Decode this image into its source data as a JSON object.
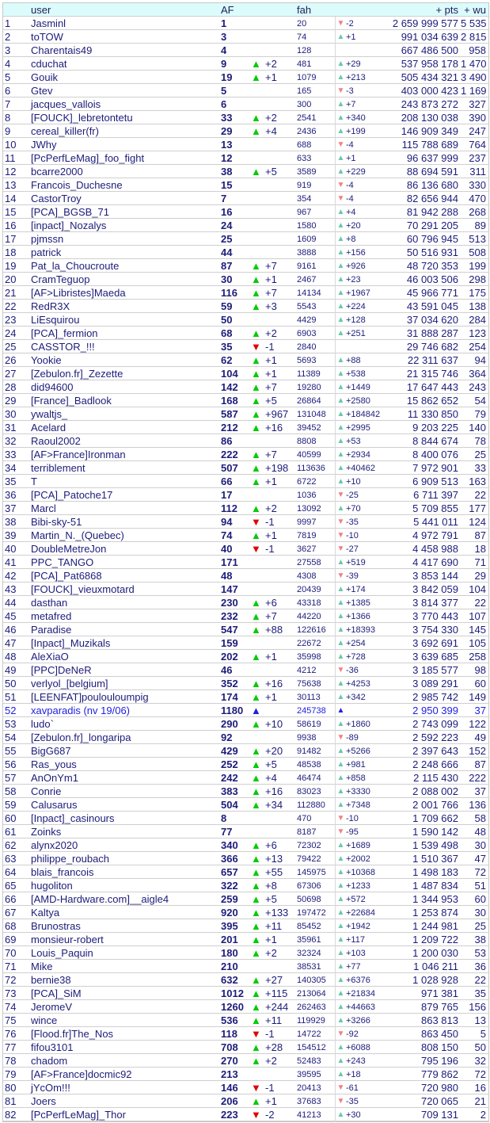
{
  "header": {
    "rank": "",
    "user": "user",
    "af": "AF",
    "fah": "fah",
    "pts": "+ pts",
    "wu": "+ wu"
  },
  "colors": {
    "header_bg": "#dcfcfc",
    "text": "#1c1c7a",
    "af_up": "#00cc00",
    "af_down": "#e00000",
    "fah_up": "#66c8a8",
    "fah_down": "#f08080",
    "new_entry": "#2020e0"
  },
  "icons": {
    "up": "triangle-up-icon",
    "down": "triangle-down-icon",
    "new": "triangle-up-blue-icon"
  },
  "rows": [
    [
      "1",
      "Jasminl",
      "1",
      "",
      "",
      "20",
      "down",
      "-2",
      "2 659 999 577",
      "5 535"
    ],
    [
      "2",
      "toTOW",
      "3",
      "",
      "",
      "74",
      "up",
      "+1",
      "991 034 639",
      "2 815"
    ],
    [
      "3",
      "Charentais49",
      "4",
      "",
      "",
      "128",
      "",
      "",
      "667 486 500",
      "958"
    ],
    [
      "4",
      "cduchat",
      "9",
      "up",
      "+2",
      "481",
      "up",
      "+29",
      "537 958 178",
      "1 470"
    ],
    [
      "5",
      "Gouik",
      "19",
      "up",
      "+1",
      "1079",
      "up",
      "+213",
      "505 434 321",
      "3 490"
    ],
    [
      "6",
      "Gtev",
      "5",
      "",
      "",
      "165",
      "down",
      "-3",
      "403 000 423",
      "1 169"
    ],
    [
      "7",
      "jacques_vallois",
      "6",
      "",
      "",
      "300",
      "up",
      "+7",
      "243 873 272",
      "327"
    ],
    [
      "8",
      "[FOUCK]_lebretontetu",
      "33",
      "up",
      "+2",
      "2541",
      "up",
      "+340",
      "208 130 038",
      "390"
    ],
    [
      "9",
      "cereal_killer(fr)",
      "29",
      "up",
      "+4",
      "2436",
      "up",
      "+199",
      "146 909 349",
      "247"
    ],
    [
      "10",
      "JWhy",
      "13",
      "",
      "",
      "688",
      "down",
      "-4",
      "115 788 689",
      "764"
    ],
    [
      "11",
      "[PcPerfLeMag]_foo_fight",
      "12",
      "",
      "",
      "633",
      "up",
      "+1",
      "96 637 999",
      "237"
    ],
    [
      "12",
      "bcarre2000",
      "38",
      "up",
      "+5",
      "3589",
      "up",
      "+229",
      "88 694 591",
      "311"
    ],
    [
      "13",
      "Francois_Duchesne",
      "15",
      "",
      "",
      "919",
      "down",
      "-4",
      "86 136 680",
      "330"
    ],
    [
      "14",
      "CastorTroy",
      "7",
      "",
      "",
      "354",
      "down",
      "-4",
      "82 656 944",
      "470"
    ],
    [
      "15",
      "[PCA]_BGSB_71",
      "16",
      "",
      "",
      "967",
      "up",
      "+4",
      "81 942 288",
      "268"
    ],
    [
      "16",
      "[inpact]_Nozalys",
      "24",
      "",
      "",
      "1580",
      "up",
      "+20",
      "70 291 205",
      "89"
    ],
    [
      "17",
      "pjmssn",
      "25",
      "",
      "",
      "1609",
      "up",
      "+8",
      "60 796 945",
      "513"
    ],
    [
      "18",
      "patrick",
      "44",
      "",
      "",
      "3888",
      "up",
      "+156",
      "50 516 931",
      "508"
    ],
    [
      "19",
      "Pat_la_Choucroute",
      "87",
      "up",
      "+7",
      "9161",
      "up",
      "+926",
      "48 720 353",
      "199"
    ],
    [
      "20",
      "CramTeguop",
      "30",
      "up",
      "+1",
      "2467",
      "up",
      "+23",
      "46 003 506",
      "298"
    ],
    [
      "21",
      "[AF>Libristes]Maeda",
      "116",
      "up",
      "+7",
      "14134",
      "up",
      "+1967",
      "45 966 771",
      "175"
    ],
    [
      "22",
      "RedR3X",
      "59",
      "up",
      "+3",
      "5543",
      "up",
      "+224",
      "43 591 045",
      "138"
    ],
    [
      "23",
      "LiEsquirou",
      "50",
      "",
      "",
      "4429",
      "up",
      "+128",
      "37 034 620",
      "284"
    ],
    [
      "24",
      "[PCA]_fermion",
      "68",
      "up",
      "+2",
      "6903",
      "up",
      "+251",
      "31 888 287",
      "123"
    ],
    [
      "25",
      "CASSTOR_!!!",
      "35",
      "down",
      "-1",
      "2840",
      "",
      "",
      "29 746 682",
      "254"
    ],
    [
      "26",
      "Yookie",
      "62",
      "up",
      "+1",
      "5693",
      "up",
      "+88",
      "22 311 637",
      "94"
    ],
    [
      "27",
      "[Zebulon.fr]_Zezette",
      "104",
      "up",
      "+1",
      "11389",
      "up",
      "+538",
      "21 315 746",
      "364"
    ],
    [
      "28",
      "did94600",
      "142",
      "up",
      "+7",
      "19280",
      "up",
      "+1449",
      "17 647 443",
      "243"
    ],
    [
      "29",
      "[France]_Badlook",
      "168",
      "up",
      "+5",
      "26864",
      "up",
      "+2580",
      "15 862 652",
      "54"
    ],
    [
      "30",
      "ywaltjs_",
      "587",
      "up",
      "+967",
      "131048",
      "up",
      "+184842",
      "11 330 850",
      "79"
    ],
    [
      "31",
      "Acelard",
      "212",
      "up",
      "+16",
      "39452",
      "up",
      "+2995",
      "9 203 225",
      "140"
    ],
    [
      "32",
      "Raoul2002",
      "86",
      "",
      "",
      "8808",
      "up",
      "+53",
      "8 844 674",
      "78"
    ],
    [
      "33",
      "[AF>France]Ironman",
      "222",
      "up",
      "+7",
      "40599",
      "up",
      "+2934",
      "8 400 076",
      "25"
    ],
    [
      "34",
      "terriblement",
      "507",
      "up",
      "+198",
      "113636",
      "up",
      "+40462",
      "7 972 901",
      "33"
    ],
    [
      "35",
      "T",
      "66",
      "up",
      "+1",
      "6722",
      "up",
      "+10",
      "6 909 513",
      "163"
    ],
    [
      "36",
      "[PCA]_Patoche17",
      "17",
      "",
      "",
      "1036",
      "down",
      "-25",
      "6 711 397",
      "22"
    ],
    [
      "37",
      "Marcl",
      "112",
      "up",
      "+2",
      "13092",
      "up",
      "+70",
      "5 709 855",
      "177"
    ],
    [
      "38",
      "Bibi-sky-51",
      "94",
      "down",
      "-1",
      "9997",
      "down",
      "-35",
      "5 441 011",
      "124"
    ],
    [
      "39",
      "Martin_N._(Quebec)",
      "74",
      "up",
      "+1",
      "7819",
      "down",
      "-10",
      "4 972 791",
      "87"
    ],
    [
      "40",
      "DoubleMetreJon",
      "40",
      "down",
      "-1",
      "3627",
      "down",
      "-27",
      "4 458 988",
      "18"
    ],
    [
      "41",
      "PPC_TANGO",
      "171",
      "",
      "",
      "27558",
      "up",
      "+519",
      "4 417 690",
      "71"
    ],
    [
      "42",
      "[PCA]_Pat6868",
      "48",
      "",
      "",
      "4308",
      "down",
      "-39",
      "3 853 144",
      "29"
    ],
    [
      "43",
      "[FOUCK]_vieuxmotard",
      "147",
      "",
      "",
      "20439",
      "up",
      "+174",
      "3 842 059",
      "104"
    ],
    [
      "44",
      "dasthan",
      "230",
      "up",
      "+6",
      "43318",
      "up",
      "+1385",
      "3 814 377",
      "22"
    ],
    [
      "45",
      "metafred",
      "232",
      "up",
      "+7",
      "44220",
      "up",
      "+1366",
      "3 770 443",
      "107"
    ],
    [
      "46",
      "Paradise",
      "547",
      "up",
      "+88",
      "122616",
      "up",
      "+18393",
      "3 754 330",
      "145"
    ],
    [
      "47",
      "[Inpact]_Muzikals",
      "159",
      "",
      "",
      "22672",
      "up",
      "+254",
      "3 692 691",
      "105"
    ],
    [
      "48",
      "AleXiaO",
      "202",
      "up",
      "+1",
      "35998",
      "up",
      "+728",
      "3 639 685",
      "258"
    ],
    [
      "49",
      "[PPC]DeNeR",
      "46",
      "",
      "",
      "4212",
      "down",
      "-36",
      "3 185 577",
      "98"
    ],
    [
      "50",
      "verlyol_[belgium]",
      "352",
      "up",
      "+16",
      "75638",
      "up",
      "+4253",
      "3 089 291",
      "60"
    ],
    [
      "51",
      "[LEENFAT]poulouloumpig",
      "174",
      "up",
      "+1",
      "30113",
      "up",
      "+342",
      "2 985 742",
      "149"
    ],
    [
      "52",
      "xavparadis  (nv 19/06)",
      "1180",
      "new",
      "",
      "245738",
      "new",
      "",
      "2 950 399",
      "37"
    ],
    [
      "53",
      "ludo`",
      "290",
      "up",
      "+10",
      "58619",
      "up",
      "+1860",
      "2 743 099",
      "122"
    ],
    [
      "54",
      "[Zebulon.fr]_longaripa",
      "92",
      "",
      "",
      "9938",
      "down",
      "-89",
      "2 592 223",
      "49"
    ],
    [
      "55",
      "BigG687",
      "429",
      "up",
      "+20",
      "91482",
      "up",
      "+5266",
      "2 397 643",
      "152"
    ],
    [
      "56",
      "Ras_yous",
      "252",
      "up",
      "+5",
      "48538",
      "up",
      "+981",
      "2 248 666",
      "87"
    ],
    [
      "57",
      "AnOnYm1",
      "242",
      "up",
      "+4",
      "46474",
      "up",
      "+858",
      "2 115 430",
      "222"
    ],
    [
      "58",
      "Conrie",
      "383",
      "up",
      "+16",
      "83023",
      "up",
      "+3330",
      "2 088 002",
      "37"
    ],
    [
      "59",
      "Calusarus",
      "504",
      "up",
      "+34",
      "112880",
      "up",
      "+7348",
      "2 001 766",
      "136"
    ],
    [
      "60",
      "[Inpact]_casinours",
      "8",
      "",
      "",
      "470",
      "down",
      "-10",
      "1 709 662",
      "58"
    ],
    [
      "61",
      "Zoinks",
      "77",
      "",
      "",
      "8187",
      "down",
      "-95",
      "1 590 142",
      "48"
    ],
    [
      "62",
      "alynx2020",
      "340",
      "up",
      "+6",
      "72302",
      "up",
      "+1689",
      "1 539 498",
      "30"
    ],
    [
      "63",
      "philippe_roubach",
      "366",
      "up",
      "+13",
      "79422",
      "up",
      "+2002",
      "1 510 367",
      "47"
    ],
    [
      "64",
      "blais_francois",
      "657",
      "up",
      "+55",
      "145975",
      "up",
      "+10368",
      "1 498 183",
      "72"
    ],
    [
      "65",
      "hugoliton",
      "322",
      "up",
      "+8",
      "67306",
      "up",
      "+1233",
      "1 487 834",
      "51"
    ],
    [
      "66",
      "[AMD-Hardware.com]__aigle4",
      "259",
      "up",
      "+5",
      "50698",
      "up",
      "+572",
      "1 344 953",
      "60"
    ],
    [
      "67",
      "Kaltya",
      "920",
      "up",
      "+133",
      "197472",
      "up",
      "+22684",
      "1 253 874",
      "30"
    ],
    [
      "68",
      "Brunostras",
      "395",
      "up",
      "+11",
      "85452",
      "up",
      "+1942",
      "1 244 981",
      "25"
    ],
    [
      "69",
      "monsieur-robert",
      "201",
      "up",
      "+1",
      "35961",
      "up",
      "+117",
      "1 209 722",
      "38"
    ],
    [
      "70",
      "Louis_Paquin",
      "180",
      "up",
      "+2",
      "32324",
      "up",
      "+103",
      "1 200 030",
      "53"
    ],
    [
      "71",
      "Mike",
      "210",
      "",
      "",
      "38531",
      "up",
      "+77",
      "1 046 211",
      "36"
    ],
    [
      "72",
      "bernie38",
      "632",
      "up",
      "+27",
      "140305",
      "up",
      "+6376",
      "1 028 928",
      "22"
    ],
    [
      "73",
      "[PCA]_SiM",
      "1012",
      "up",
      "+115",
      "213064",
      "up",
      "+21834",
      "971 381",
      "35"
    ],
    [
      "74",
      "JeromeV",
      "1260",
      "up",
      "+244",
      "262463",
      "up",
      "+44663",
      "879 765",
      "156"
    ],
    [
      "75",
      "wince",
      "536",
      "up",
      "+11",
      "119929",
      "up",
      "+3266",
      "863 813",
      "13"
    ],
    [
      "76",
      "[Flood.fr]The_Nos",
      "118",
      "down",
      "-1",
      "14722",
      "down",
      "-92",
      "863 450",
      "5"
    ],
    [
      "77",
      "fifou3101",
      "708",
      "up",
      "+28",
      "154512",
      "up",
      "+6088",
      "808 150",
      "50"
    ],
    [
      "78",
      "chadom",
      "270",
      "up",
      "+2",
      "52483",
      "up",
      "+243",
      "795 196",
      "32"
    ],
    [
      "79",
      "[AF>France]docmic92",
      "213",
      "",
      "",
      "39595",
      "up",
      "+18",
      "779 862",
      "72"
    ],
    [
      "80",
      "jYcOm!!!",
      "146",
      "down",
      "-1",
      "20413",
      "down",
      "-61",
      "720 980",
      "16"
    ],
    [
      "81",
      "Joers",
      "206",
      "up",
      "+1",
      "37683",
      "down",
      "-35",
      "720 065",
      "21"
    ],
    [
      "82",
      "[PcPerfLeMag]_Thor",
      "223",
      "down",
      "-2",
      "41213",
      "up",
      "+30",
      "709 131",
      "2"
    ]
  ]
}
